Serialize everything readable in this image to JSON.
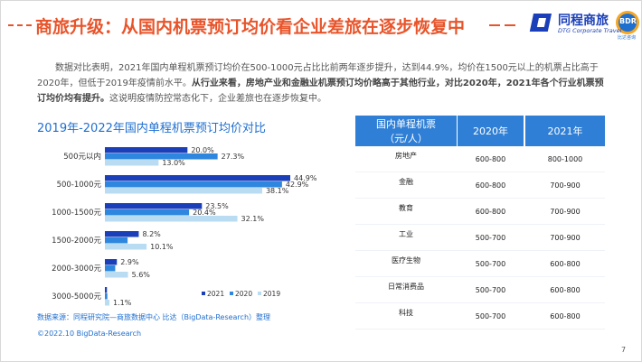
{
  "header": {
    "title": "商旅升级：从国内机票预订均价看企业差旅在逐步恢复中",
    "logo": "同程商旅",
    "logo_sub": "DTG Corporate Travel",
    "badge": "BDR",
    "badge_sub": "比达咨询"
  },
  "paragraph": [
    {
      "text": "数据对比表明，2021年国内单程机票预订均价在500-1000元占比比前两年逐步提升，达到44.9%，均价在1500元以上的机票占比高于2020年，但低于2019年疫情前水平。",
      "bold": false
    },
    {
      "text": "从行业来看，房地产业和金融业机票预订均价略高于其他行业，对比2020年，2021年各个行业机票预订均价均有提升。",
      "bold": true
    },
    {
      "text": "这说明疫情防控常态化下，企业差旅也在逐步恢复中。",
      "bold": false
    }
  ],
  "chart_data": {
    "type": "hbar",
    "title": "2019年-2022年国内单程机票预订均价对比",
    "categories": [
      "500元以内",
      "500-1000元",
      "1000-1500元",
      "1500-2000元",
      "2000-3000元",
      "3000-5000元"
    ],
    "series": [
      {
        "name": "2021",
        "color": "#1b3fb8",
        "values": [
          20.0,
          44.9,
          23.5,
          8.2,
          2.9,
          0.5
        ],
        "value_labels": [
          "20.0%",
          "44.9%",
          "23.5%",
          "8.2%",
          "2.9%",
          null
        ]
      },
      {
        "name": "2020",
        "color": "#2e86de",
        "values": [
          27.3,
          42.9,
          20.4,
          5.5,
          2.5,
          0.6
        ],
        "value_labels": [
          "27.3%",
          "42.9%",
          "20.4%",
          null,
          null,
          null
        ]
      },
      {
        "name": "2019",
        "color": "#b9dcf3",
        "values": [
          13.0,
          38.1,
          32.1,
          10.1,
          5.6,
          1.1
        ],
        "value_labels": [
          "13.0%",
          "38.1%",
          "32.1%",
          "10.1%",
          "5.6%",
          "1.1%"
        ]
      }
    ],
    "legend": "bottom-right"
  },
  "table": {
    "header": [
      "国内单程机票（元/人）",
      "2020年",
      "2021年"
    ],
    "rows": [
      [
        "房地产",
        "600-800",
        "800-1000"
      ],
      [
        "金融",
        "600-800",
        "700-900"
      ],
      [
        "教育",
        "600-800",
        "700-900"
      ],
      [
        "工业",
        "500-700",
        "700-900"
      ],
      [
        "医疗生物",
        "500-700",
        "600-800"
      ],
      [
        "日常消费品",
        "500-700",
        "600-800"
      ],
      [
        "科技",
        "500-700",
        "600-800"
      ]
    ]
  },
  "footer": {
    "source": "数据来源：同程研究院—商旅数据中心 比达（BigData-Research）整理",
    "copyright": "©2022.10 BigData-Research",
    "page": "7"
  }
}
